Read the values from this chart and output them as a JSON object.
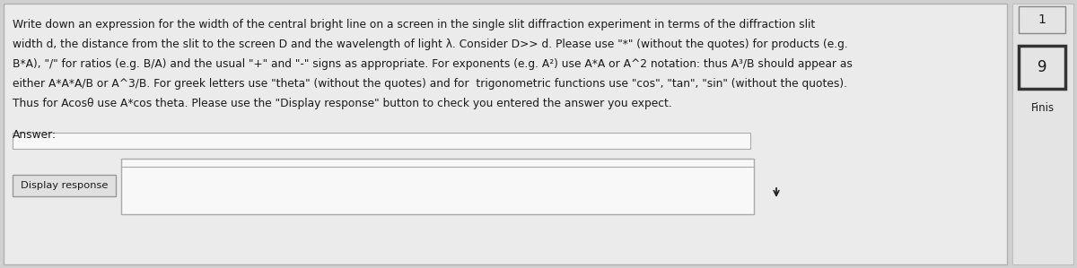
{
  "bg_color": "#d0d0d0",
  "main_panel_color": "#ebebeb",
  "right_panel_color": "#e4e4e4",
  "main_text_lines": [
    "Write down an expression for the width of the central bright line on a screen in the single slit diffraction experiment in terms of the diffraction slit",
    "width d, the distance from the slit to the screen D and the wavelength of light λ. Consider D>> d. Please use \"*\" (without the quotes) for products (e.g.",
    "B*A), \"/\" for ratios (e.g. B/A) and the usual \"+\" and \"-\" signs as appropriate. For exponents (e.g. A²) use A*A or A^2 notation: thus A³/B should appear as",
    "either A*A*A/B or A^3/B. For greek letters use \"theta\" (without the quotes) and for  trigonometric functions use \"cos\", \"tan\", \"sin\" (without the quotes).",
    "Thus for Acosθ use A*cos theta. Please use the \"Display response\" button to check you entered the answer you expect."
  ],
  "answer_label": "Answer:",
  "button_text": "Display response",
  "number_top": "1",
  "number_mid": "9",
  "finish_text": "Finis",
  "input_box_color": "#f8f8f8",
  "button_color": "#e0e0e0",
  "border_color": "#b0b0b0",
  "text_color": "#1a1a1a",
  "fontsize_main": 8.8,
  "fontsize_answer": 8.8,
  "fontsize_button": 8.2,
  "fontsize_number": 11,
  "fontsize_finis": 8.5
}
